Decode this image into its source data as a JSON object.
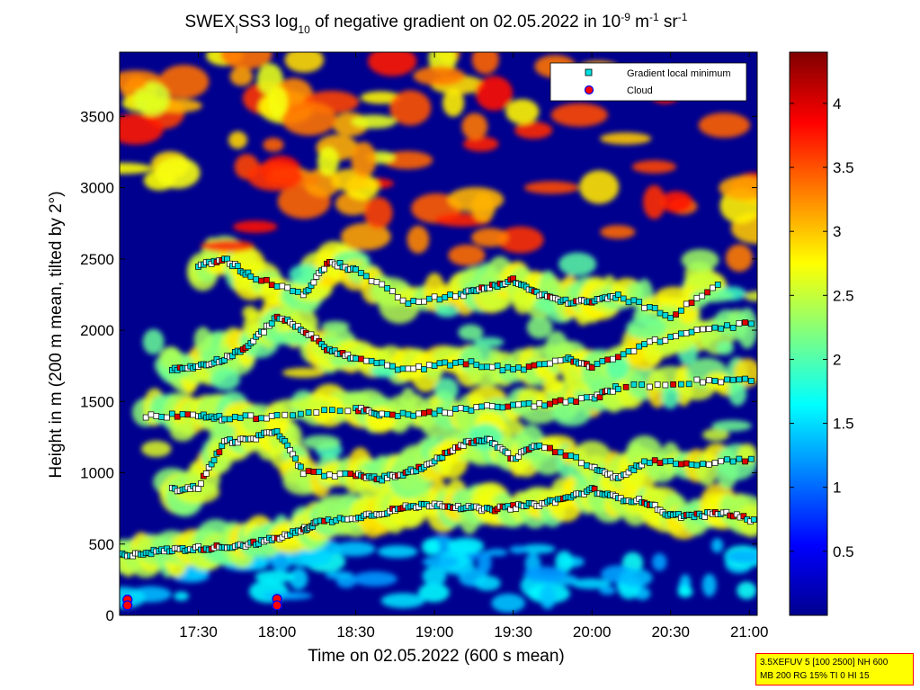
{
  "chart_data": {
    "type": "heatmap",
    "title": "SWEX",
    "title_sub": "I",
    "title_mid": "SS3 log",
    "title_log_base": "10",
    "title_rest": " of negative gradient on 02.05.2022 in 10",
    "title_sup1": "-9",
    "title_unit1": " m",
    "title_sup2": "-1",
    "title_unit2": " sr",
    "title_sup3": "-1",
    "xlabel": "Time on 02.05.2022 (600 s mean)",
    "ylabel": "Height in m (200 m mean, tilted by 2°)",
    "x_ticks": [
      "17:30",
      "18:00",
      "18:30",
      "19:00",
      "19:30",
      "20:00",
      "20:30",
      "21:00"
    ],
    "x_tick_minutes": [
      1050,
      1080,
      1110,
      1140,
      1170,
      1200,
      1230,
      1260
    ],
    "x_range_minutes": [
      1020,
      1263
    ],
    "y_ticks": [
      0,
      500,
      1000,
      1500,
      2000,
      2500,
      3000,
      3500
    ],
    "y_range": [
      0,
      3950
    ],
    "colorbar": {
      "range": [
        0,
        4.4
      ],
      "ticks": [
        0.5,
        1,
        1.5,
        2,
        2.5,
        3,
        3.5,
        4
      ],
      "tick_labels": [
        "0.5",
        "1",
        "1.5",
        "2",
        "2.5",
        "3",
        "3.5",
        "4"
      ],
      "colormap": "jet"
    },
    "legend": {
      "placement": "top-right",
      "entries": [
        {
          "label": "Gradient local minimum",
          "marker": "square",
          "color": "#00e0e0"
        },
        {
          "label": "Cloud",
          "marker": "circle",
          "color": "#ff0000",
          "edge": "#0000ff"
        }
      ]
    },
    "gradient_layers": [
      {
        "name": "layer-boundary",
        "points": [
          [
            1020,
            420
          ],
          [
            1030,
            440
          ],
          [
            1040,
            460
          ],
          [
            1050,
            470
          ],
          [
            1060,
            480
          ],
          [
            1070,
            500
          ],
          [
            1080,
            540
          ],
          [
            1090,
            600
          ],
          [
            1095,
            650
          ]
        ]
      },
      {
        "name": "layer-main",
        "points": [
          [
            1095,
            650
          ],
          [
            1110,
            690
          ],
          [
            1120,
            720
          ],
          [
            1130,
            760
          ],
          [
            1140,
            780
          ],
          [
            1150,
            760
          ],
          [
            1160,
            740
          ],
          [
            1170,
            760
          ],
          [
            1180,
            780
          ],
          [
            1190,
            820
          ],
          [
            1200,
            880
          ],
          [
            1210,
            820
          ],
          [
            1220,
            800
          ],
          [
            1230,
            700
          ],
          [
            1240,
            700
          ],
          [
            1250,
            720
          ],
          [
            1263,
            660
          ]
        ]
      },
      {
        "name": "layer-1000",
        "points": [
          [
            1040,
            880
          ],
          [
            1050,
            900
          ],
          [
            1060,
            1220
          ],
          [
            1070,
            1230
          ],
          [
            1080,
            1300
          ],
          [
            1090,
            1000
          ],
          [
            1110,
            980
          ],
          [
            1120,
            960
          ],
          [
            1130,
            1000
          ],
          [
            1140,
            1080
          ],
          [
            1150,
            1200
          ],
          [
            1160,
            1240
          ],
          [
            1170,
            1100
          ],
          [
            1180,
            1200
          ],
          [
            1200,
            1050
          ],
          [
            1210,
            960
          ],
          [
            1220,
            1080
          ],
          [
            1240,
            1060
          ],
          [
            1263,
            1100
          ]
        ]
      },
      {
        "name": "layer-1400",
        "points": [
          [
            1030,
            1400
          ],
          [
            1050,
            1400
          ],
          [
            1060,
            1380
          ],
          [
            1080,
            1400
          ],
          [
            1110,
            1450
          ],
          [
            1120,
            1400
          ],
          [
            1140,
            1420
          ],
          [
            1160,
            1460
          ],
          [
            1180,
            1480
          ],
          [
            1200,
            1520
          ],
          [
            1210,
            1600
          ],
          [
            1240,
            1640
          ],
          [
            1263,
            1660
          ]
        ]
      },
      {
        "name": "layer-1800",
        "points": [
          [
            1040,
            1720
          ],
          [
            1050,
            1750
          ],
          [
            1060,
            1800
          ],
          [
            1070,
            1900
          ],
          [
            1080,
            2100
          ],
          [
            1090,
            2000
          ],
          [
            1100,
            1860
          ],
          [
            1110,
            1800
          ],
          [
            1130,
            1720
          ],
          [
            1150,
            1780
          ],
          [
            1170,
            1720
          ],
          [
            1190,
            1800
          ],
          [
            1200,
            1740
          ],
          [
            1220,
            1900
          ],
          [
            1240,
            2000
          ],
          [
            1263,
            2050
          ]
        ]
      },
      {
        "name": "layer-2300",
        "points": [
          [
            1050,
            2450
          ],
          [
            1060,
            2500
          ],
          [
            1070,
            2380
          ],
          [
            1090,
            2250
          ],
          [
            1100,
            2480
          ],
          [
            1110,
            2420
          ],
          [
            1130,
            2200
          ],
          [
            1150,
            2250
          ],
          [
            1160,
            2300
          ],
          [
            1170,
            2350
          ],
          [
            1180,
            2250
          ],
          [
            1190,
            2200
          ],
          [
            1200,
            2200
          ],
          [
            1210,
            2240
          ],
          [
            1230,
            2100
          ],
          [
            1250,
            2350
          ]
        ]
      }
    ],
    "cloud_points": [
      [
        1023,
        110
      ],
      [
        1023,
        70
      ],
      [
        1080,
        115
      ],
      [
        1080,
        70
      ]
    ]
  },
  "info_box": {
    "line1": "3.5XEFUV 5 [100 2500] NH 600",
    "line2": "MB 200 RG 15% TI 0 HI 15"
  }
}
